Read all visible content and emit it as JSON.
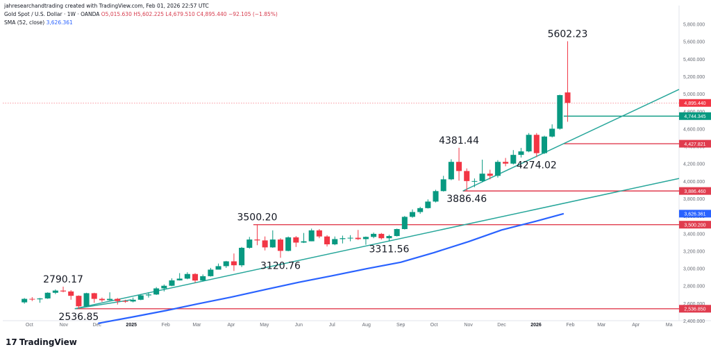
{
  "header": {
    "credit": "jahresearchandtrading created with TradingView.com, Feb 01, 2026 22:57 UTC",
    "symbol": "Gold Spot / U.S. Dollar · 1W · OANDA",
    "ohlc": "O5,015.630 H5,602.225 L4,679.510 C4,895.440 −92.105 (−1.85%)",
    "sma_label": "SMA (52, close)",
    "sma_value": "3,626.361"
  },
  "brand": {
    "logo_mark": "17",
    "logo_text": "TradingView"
  },
  "colors": {
    "up": "#089981",
    "down": "#f23645",
    "trendline": "#26a69a",
    "sma": "#2962ff",
    "level": "#e03c4e",
    "axis_text": "#666a73"
  },
  "chart_data": {
    "type": "candlestick",
    "title": "Gold Spot / U.S. Dollar · 1W · OANDA",
    "ylim": [
      2400,
      5900
    ],
    "y_ticks": [
      2400,
      2600,
      2800,
      3000,
      3200,
      3400,
      3600,
      3800,
      4000,
      4200,
      4400,
      4600,
      4800,
      5000,
      5200,
      5400,
      5600,
      5800
    ],
    "y_tick_labels": [
      "2,400.000",
      "2,600.000",
      "2,800.000",
      "3,000.000",
      "3,200.000",
      "3,400.000",
      "3,600.000",
      "3,800.000",
      "4,000.000",
      "4,200.000",
      "4,400.000",
      "4,600.000",
      "4,800.000",
      "5,000.000",
      "5,200.000",
      "5,400.000",
      "5,600.000",
      "5,800.000"
    ],
    "x_ticks": [
      {
        "label": "Oct",
        "date": "2024-10-01"
      },
      {
        "label": "Nov",
        "date": "2024-11-01"
      },
      {
        "label": "Dec",
        "date": "2024-12-01"
      },
      {
        "label": "2025",
        "date": "2025-01-01"
      },
      {
        "label": "Feb",
        "date": "2025-02-01"
      },
      {
        "label": "Mar",
        "date": "2025-03-01"
      },
      {
        "label": "Apr",
        "date": "2025-04-01"
      },
      {
        "label": "May",
        "date": "2025-05-01"
      },
      {
        "label": "Jun",
        "date": "2025-06-01"
      },
      {
        "label": "Jul",
        "date": "2025-07-01"
      },
      {
        "label": "Aug",
        "date": "2025-08-01"
      },
      {
        "label": "Sep",
        "date": "2025-09-01"
      },
      {
        "label": "Oct",
        "date": "2025-10-01"
      },
      {
        "label": "Nov",
        "date": "2025-11-01"
      },
      {
        "label": "Dec",
        "date": "2025-12-01"
      },
      {
        "label": "2026",
        "date": "2026-01-01"
      },
      {
        "label": "Feb",
        "date": "2026-02-01"
      },
      {
        "label": "Mar",
        "date": "2026-03-01"
      },
      {
        "label": "Apr",
        "date": "2026-04-01"
      },
      {
        "label": "Ma",
        "date": "2026-05-01"
      }
    ],
    "candles": [
      [
        "2024-09-23",
        2610,
        2660,
        2595,
        2650
      ],
      [
        "2024-09-30",
        2650,
        2670,
        2625,
        2645
      ],
      [
        "2024-10-07",
        2645,
        2660,
        2605,
        2655
      ],
      [
        "2024-10-14",
        2655,
        2725,
        2650,
        2720
      ],
      [
        "2024-10-21",
        2720,
        2758,
        2705,
        2745
      ],
      [
        "2024-10-28",
        2745,
        2790.17,
        2725,
        2735
      ],
      [
        "2024-11-04",
        2735,
        2750,
        2640,
        2685
      ],
      [
        "2024-11-11",
        2685,
        2690,
        2536.85,
        2565
      ],
      [
        "2024-11-18",
        2565,
        2720,
        2560,
        2715
      ],
      [
        "2024-11-25",
        2715,
        2720,
        2605,
        2650
      ],
      [
        "2024-12-02",
        2650,
        2665,
        2615,
        2635
      ],
      [
        "2024-12-09",
        2635,
        2725,
        2630,
        2650
      ],
      [
        "2024-12-16",
        2650,
        2660,
        2585,
        2625
      ],
      [
        "2024-12-23",
        2625,
        2640,
        2605,
        2620
      ],
      [
        "2024-12-30",
        2620,
        2665,
        2610,
        2640
      ],
      [
        "2025-01-06",
        2640,
        2700,
        2635,
        2690
      ],
      [
        "2025-01-13",
        2690,
        2725,
        2665,
        2700
      ],
      [
        "2025-01-20",
        2700,
        2785,
        2695,
        2770
      ],
      [
        "2025-01-27",
        2770,
        2815,
        2735,
        2800
      ],
      [
        "2025-02-03",
        2800,
        2885,
        2795,
        2862
      ],
      [
        "2025-02-10",
        2862,
        2945,
        2860,
        2882
      ],
      [
        "2025-02-17",
        2882,
        2955,
        2875,
        2935
      ],
      [
        "2025-02-24",
        2935,
        2945,
        2835,
        2860
      ],
      [
        "2025-03-03",
        2860,
        2930,
        2850,
        2910
      ],
      [
        "2025-03-10",
        2910,
        3005,
        2905,
        2985
      ],
      [
        "2025-03-17",
        2985,
        3055,
        2990,
        3025
      ],
      [
        "2025-03-24",
        3025,
        3085,
        3005,
        3080
      ],
      [
        "2025-03-31",
        3080,
        3170,
        2970,
        3035
      ],
      [
        "2025-04-07",
        3035,
        3245,
        3015,
        3235
      ],
      [
        "2025-04-14",
        3235,
        3360,
        3225,
        3330
      ],
      [
        "2025-04-21",
        3330,
        3500.2,
        3265,
        3320
      ],
      [
        "2025-04-28",
        3320,
        3365,
        3205,
        3240
      ],
      [
        "2025-05-05",
        3240,
        3435,
        3235,
        3330
      ],
      [
        "2025-05-12",
        3330,
        3345,
        3120.76,
        3200
      ],
      [
        "2025-05-19",
        3200,
        3365,
        3195,
        3355
      ],
      [
        "2025-05-26",
        3355,
        3370,
        3245,
        3295
      ],
      [
        "2025-06-02",
        3295,
        3405,
        3290,
        3310
      ],
      [
        "2025-06-09",
        3310,
        3455,
        3310,
        3435
      ],
      [
        "2025-06-16",
        3435,
        3450,
        3345,
        3365
      ],
      [
        "2025-06-23",
        3365,
        3380,
        3250,
        3275
      ],
      [
        "2025-06-30",
        3275,
        3365,
        3265,
        3335
      ],
      [
        "2025-07-07",
        3335,
        3375,
        3285,
        3345
      ],
      [
        "2025-07-14",
        3345,
        3380,
        3310,
        3350
      ],
      [
        "2025-07-21",
        3350,
        3440,
        3325,
        3335
      ],
      [
        "2025-07-28",
        3335,
        3365,
        3270,
        3360
      ],
      [
        "2025-08-04",
        3360,
        3410,
        3345,
        3395
      ],
      [
        "2025-08-11",
        3395,
        3405,
        3330,
        3345
      ],
      [
        "2025-08-18",
        3345,
        3385,
        3311.56,
        3370
      ],
      [
        "2025-08-25",
        3370,
        3455,
        3365,
        3450
      ],
      [
        "2025-09-01",
        3450,
        3600,
        3445,
        3590
      ],
      [
        "2025-09-08",
        3590,
        3675,
        3580,
        3645
      ],
      [
        "2025-09-15",
        3645,
        3705,
        3625,
        3690
      ],
      [
        "2025-09-22",
        3690,
        3790,
        3685,
        3765
      ],
      [
        "2025-09-29",
        3765,
        3900,
        3755,
        3885
      ],
      [
        "2025-10-06",
        3885,
        4060,
        3880,
        4020
      ],
      [
        "2025-10-13",
        4020,
        4250,
        4010,
        4220
      ],
      [
        "2025-10-20",
        4220,
        4381.44,
        4005,
        4115
      ],
      [
        "2025-10-27",
        4115,
        4145,
        3886.46,
        4000
      ],
      [
        "2025-11-03",
        4000,
        4030,
        3930,
        4000
      ],
      [
        "2025-11-10",
        4000,
        4245,
        3990,
        4085
      ],
      [
        "2025-11-17",
        4085,
        4130,
        4020,
        4060
      ],
      [
        "2025-11-24",
        4060,
        4240,
        4040,
        4220
      ],
      [
        "2025-12-01",
        4220,
        4265,
        4170,
        4200
      ],
      [
        "2025-12-08",
        4200,
        4355,
        4190,
        4300
      ],
      [
        "2025-12-15",
        4300,
        4380,
        4270,
        4340
      ],
      [
        "2025-12-22",
        4340,
        4550,
        4330,
        4530
      ],
      [
        "2025-12-29",
        4530,
        4550,
        4274.02,
        4320
      ],
      [
        "2026-01-05",
        4320,
        4520,
        4310,
        4510
      ],
      [
        "2026-01-12",
        4510,
        4650,
        4500,
        4600
      ],
      [
        "2026-01-19",
        4600,
        4990,
        4590,
        4985
      ],
      [
        "2026-01-26",
        5015.63,
        5602.225,
        4679.51,
        4895.44
      ]
    ],
    "sma": {
      "name": "SMA (52, close)",
      "points": [
        [
          "2024-12-02",
          2370
        ],
        [
          "2025-01-01",
          2440
        ],
        [
          "2025-02-01",
          2515
        ],
        [
          "2025-03-01",
          2590
        ],
        [
          "2025-04-01",
          2670
        ],
        [
          "2025-05-01",
          2755
        ],
        [
          "2025-06-01",
          2840
        ],
        [
          "2025-07-01",
          2915
        ],
        [
          "2025-08-01",
          2995
        ],
        [
          "2025-09-01",
          3070
        ],
        [
          "2025-10-01",
          3180
        ],
        [
          "2025-11-01",
          3305
        ],
        [
          "2025-12-01",
          3440
        ],
        [
          "2026-01-01",
          3540
        ],
        [
          "2026-01-26",
          3626.361
        ]
      ]
    },
    "trendlines": [
      {
        "from": [
          "2024-11-11",
          2536.85
        ],
        "to": [
          "2026-05-10",
          4030
        ]
      },
      {
        "from": [
          "2024-11-11",
          2536.85
        ],
        "to": [
          "2025-01-01",
          2640
        ]
      },
      {
        "from": [
          "2025-10-27",
          3886.46
        ],
        "to": [
          "2026-05-10",
          5050
        ]
      }
    ],
    "levels": [
      {
        "value": 5602.225,
        "label": "",
        "color": "#f23645",
        "dotted": true,
        "from": "2024-09-01",
        "style": "last"
      },
      {
        "value": 4895.44,
        "label": "4,895.440",
        "color": "#f23645",
        "dotted": true,
        "from": "2024-09-01"
      },
      {
        "value": 4744.345,
        "label": "4,744.345",
        "color": "#089981",
        "from": "2026-01-26"
      },
      {
        "value": 4427.821,
        "label": "4,427.821",
        "color": "#e03c4e",
        "from": "2026-01-26"
      },
      {
        "value": 3886.46,
        "label": "3,886.460",
        "color": "#e03c4e",
        "from": "2025-10-27"
      },
      {
        "value": 3626.361,
        "label": "3,626.361",
        "color": "#2962ff",
        "from": null
      },
      {
        "value": 3500.2,
        "label": "3,500.200",
        "color": "#e03c4e",
        "from": "2025-04-21"
      },
      {
        "value": 2536.85,
        "label": "2,536.850",
        "color": "#e03c4e",
        "from": "2024-11-11"
      }
    ],
    "annotations": [
      {
        "text": "5602.23",
        "date": "2026-01-26",
        "value": 5602.225,
        "pos": "above"
      },
      {
        "text": "4381.44",
        "date": "2025-10-20",
        "value": 4381.44,
        "pos": "above"
      },
      {
        "text": "4274.02",
        "date": "2025-12-29",
        "value": 4274.02,
        "pos": "below"
      },
      {
        "text": "3886.46",
        "date": "2025-10-27",
        "value": 3886.46,
        "pos": "below"
      },
      {
        "text": "3500.20",
        "date": "2025-04-21",
        "value": 3500.2,
        "pos": "above"
      },
      {
        "text": "3311.56",
        "date": "2025-08-18",
        "value": 3311.56,
        "pos": "below"
      },
      {
        "text": "3120.76",
        "date": "2025-05-12",
        "value": 3120.76,
        "pos": "below"
      },
      {
        "text": "2790.17",
        "date": "2024-10-28",
        "value": 2790.17,
        "pos": "above"
      },
      {
        "text": "2536.85",
        "date": "2024-11-11",
        "value": 2536.85,
        "pos": "below"
      }
    ]
  }
}
